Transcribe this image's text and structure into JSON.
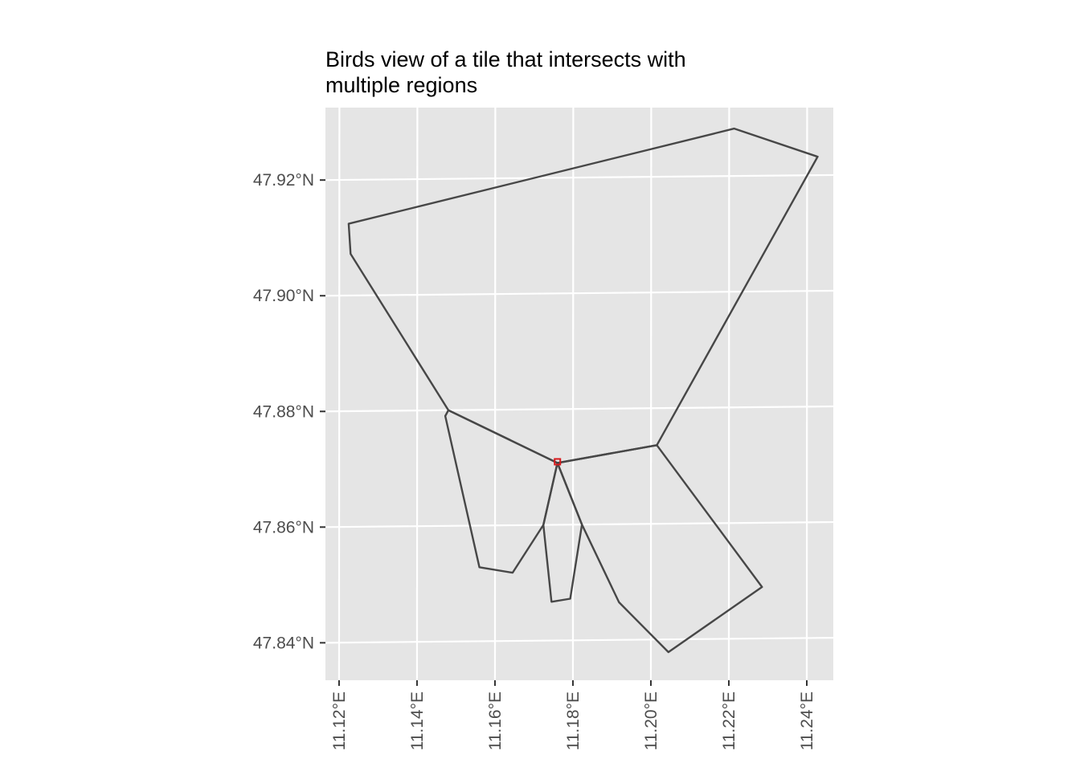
{
  "title_lines": [
    "Birds view of a tile that intersects with",
    "multiple regions"
  ],
  "colors": {
    "panel_background": "#e5e5e5",
    "gridline": "#ffffff",
    "region_outline": "#474747",
    "tile_highlight": "#d7191c",
    "tick_label": "#4d4d4d",
    "title": "#000000"
  },
  "chart_data": {
    "type": "map",
    "title": "Birds view of a tile that intersects with multiple regions",
    "xlabel": "",
    "ylabel": "",
    "x_ticks": [
      {
        "value": 11.12,
        "label": "11.12°E"
      },
      {
        "value": 11.14,
        "label": "11.14°E"
      },
      {
        "value": 11.16,
        "label": "11.16°E"
      },
      {
        "value": 11.18,
        "label": "11.18°E"
      },
      {
        "value": 11.2,
        "label": "11.20°E"
      },
      {
        "value": 11.22,
        "label": "11.22°E"
      },
      {
        "value": 11.24,
        "label": "11.24°E"
      }
    ],
    "y_ticks": [
      {
        "value": 47.84,
        "label": "47.84°N"
      },
      {
        "value": 47.86,
        "label": "47.86°N"
      },
      {
        "value": 47.88,
        "label": "47.88°N"
      },
      {
        "value": 47.9,
        "label": "47.90°N"
      },
      {
        "value": 47.92,
        "label": "47.92°N"
      }
    ],
    "xlim": [
      11.1165,
      11.2468
    ],
    "ylim": [
      47.8335,
      47.9325
    ],
    "grid": true,
    "regions": [
      {
        "coords": [
          [
            11.1224,
            47.9124
          ],
          [
            11.1229,
            47.9072
          ],
          [
            11.148,
            47.88
          ],
          [
            11.176,
            47.8707
          ],
          [
            11.2015,
            47.8736
          ],
          [
            11.2427,
            47.9232
          ],
          [
            11.2213,
            47.9282
          ],
          [
            11.1224,
            47.9124
          ]
        ]
      },
      {
        "coords": [
          [
            11.148,
            47.88
          ],
          [
            11.1472,
            47.879
          ],
          [
            11.156,
            47.8528
          ],
          [
            11.1645,
            47.8518
          ],
          [
            11.1724,
            47.86
          ],
          [
            11.176,
            47.8707
          ],
          [
            11.148,
            47.88
          ]
        ]
      },
      {
        "coords": [
          [
            11.176,
            47.8707
          ],
          [
            11.1724,
            47.86
          ],
          [
            11.1745,
            47.8467
          ],
          [
            11.1793,
            47.8472
          ],
          [
            11.1823,
            47.86
          ],
          [
            11.176,
            47.8707
          ]
        ]
      },
      {
        "coords": [
          [
            11.176,
            47.8707
          ],
          [
            11.1823,
            47.86
          ],
          [
            11.1918,
            47.8465
          ],
          [
            11.2045,
            47.8378
          ],
          [
            11.2285,
            47.8489
          ],
          [
            11.2015,
            47.8736
          ],
          [
            11.176,
            47.8707
          ]
        ]
      }
    ],
    "tile": {
      "lon": 11.176,
      "lat": 47.8709
    }
  }
}
